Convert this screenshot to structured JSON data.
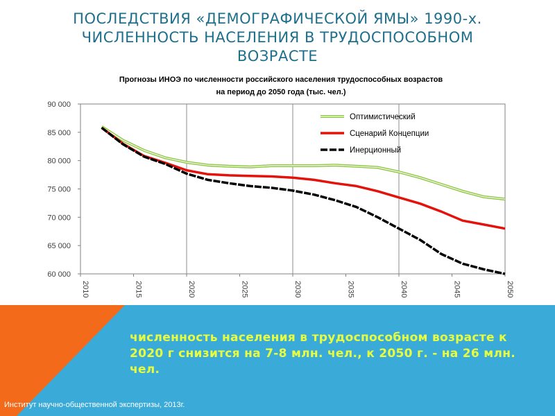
{
  "slide": {
    "title_lines": [
      "ПОСЛЕДСТВИЯ «ДЕМОГРАФИЧЕСКОЙ ЯМЫ» 1990-х.",
      "ЧИСЛЕННОСТЬ НАСЕЛЕНИЯ В ТРУДОСПОСОБНОМ",
      "ВОЗРАСТЕ"
    ],
    "conclusion": "численность населения в трудоспособном возрасте к 2020 г снизится на 7-8 млн. чел., к 2050 г. - на 26 млн. чел.",
    "source": "Институт научно-общественной экспертизы, 2013г."
  },
  "colors": {
    "title": "#1f6f8b",
    "optimistic": "#8dc63f",
    "concept": "#e3120b",
    "inertial": "#000000",
    "banner_blue": "#3aaad8",
    "banner_orange": "#f46a1b",
    "banner_text": "#e8ff40"
  },
  "chart_data": {
    "type": "line",
    "title_lines": [
      "Прогнозы ИНОЭ по численности российского населения трудоспособных возрастов",
      "на период до 2050 года (тыс. чел.)"
    ],
    "xlim": [
      2010,
      2050
    ],
    "ylim": [
      60000,
      90000
    ],
    "x_ticks": [
      "2010",
      "2015",
      "2020",
      "2025",
      "2030",
      "2035",
      "2040",
      "2045",
      "2050"
    ],
    "y_ticks": [
      "60 000",
      "65 000",
      "70 000",
      "75 000",
      "80 000",
      "85 000",
      "90 000"
    ],
    "legend_position": "top-right",
    "grid": "vertical-major",
    "x": [
      2012,
      2014,
      2016,
      2018,
      2020,
      2022,
      2024,
      2026,
      2028,
      2030,
      2032,
      2034,
      2036,
      2038,
      2040,
      2042,
      2044,
      2046,
      2048,
      2050
    ],
    "series": [
      {
        "name": "Оптимистический",
        "style": "double-green",
        "values": [
          86000,
          83600,
          81800,
          80500,
          79700,
          79200,
          79000,
          78900,
          79100,
          79100,
          79100,
          79200,
          79000,
          78800,
          78000,
          77000,
          75800,
          74600,
          73600,
          73200
        ]
      },
      {
        "name": "Сценарий Концепции",
        "style": "solid-red",
        "values": [
          85800,
          83000,
          80800,
          79600,
          78300,
          77600,
          77400,
          77300,
          77200,
          77000,
          76600,
          76000,
          75500,
          74600,
          73500,
          72400,
          71000,
          69400,
          68700,
          68000
        ]
      },
      {
        "name": "Инерционный",
        "style": "dashed-black",
        "values": [
          85800,
          82900,
          80700,
          79400,
          77700,
          76600,
          76000,
          75500,
          75200,
          74700,
          74000,
          73000,
          71800,
          70000,
          68000,
          66000,
          63500,
          61800,
          60800,
          60000
        ]
      }
    ]
  }
}
